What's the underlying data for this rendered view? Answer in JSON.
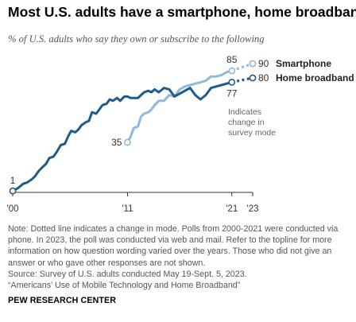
{
  "title": "Most U.S. adults have a smartphone, home broadband",
  "subtitle": "% of U.S. adults who say they own or subscribe to the following",
  "chart_data": {
    "type": "line",
    "xlim": [
      2000,
      2023
    ],
    "ylim": [
      0,
      100
    ],
    "x_ticks": [
      {
        "value": 2000,
        "label": "'00"
      },
      {
        "value": 2011,
        "label": "'11"
      },
      {
        "value": 2021,
        "label": "'21"
      },
      {
        "value": 2023,
        "label": "'23"
      }
    ],
    "grid": false,
    "legend": "direct labels at line ends",
    "series": [
      {
        "name": "Home broadband",
        "color": "#1f5c8b",
        "points": [
          [
            2000.0,
            1
          ],
          [
            2000.5,
            3
          ],
          [
            2001.0,
            6
          ],
          [
            2001.4,
            7
          ],
          [
            2001.8,
            9
          ],
          [
            2002.1,
            11
          ],
          [
            2002.5,
            15
          ],
          [
            2002.9,
            18
          ],
          [
            2003.2,
            20
          ],
          [
            2003.5,
            24
          ],
          [
            2003.9,
            25
          ],
          [
            2004.2,
            28
          ],
          [
            2004.6,
            33
          ],
          [
            2005.0,
            34
          ],
          [
            2005.3,
            39
          ],
          [
            2005.6,
            43
          ],
          [
            2006.0,
            42
          ],
          [
            2006.3,
            44
          ],
          [
            2006.6,
            47
          ],
          [
            2007.0,
            49
          ],
          [
            2007.3,
            50
          ],
          [
            2007.6,
            56
          ],
          [
            2008.0,
            55
          ],
          [
            2008.3,
            58
          ],
          [
            2008.6,
            61
          ],
          [
            2009.0,
            62
          ],
          [
            2009.3,
            65
          ],
          [
            2009.6,
            64
          ],
          [
            2010.0,
            66
          ],
          [
            2010.3,
            64
          ],
          [
            2010.7,
            67
          ],
          [
            2011.0,
            67
          ],
          [
            2011.3,
            66
          ],
          [
            2011.6,
            66
          ],
          [
            2012.0,
            66
          ],
          [
            2012.3,
            68
          ],
          [
            2012.6,
            70
          ],
          [
            2013.0,
            71
          ],
          [
            2013.3,
            70
          ],
          [
            2013.6,
            72
          ],
          [
            2014.0,
            70
          ],
          [
            2014.5,
            73
          ],
          [
            2015.0,
            72
          ],
          [
            2015.5,
            67
          ],
          [
            2016.0,
            69
          ],
          [
            2016.5,
            71
          ],
          [
            2017.0,
            73
          ],
          [
            2017.5,
            68
          ],
          [
            2018.0,
            65
          ],
          [
            2018.5,
            68
          ],
          [
            2019.0,
            73
          ],
          [
            2020.0,
            75
          ],
          [
            2021.0,
            77
          ]
        ],
        "end_2021": {
          "value": 77,
          "label": "77"
        },
        "projection": {
          "x": 2023,
          "value": 80,
          "label": "80",
          "style": "dotted"
        }
      },
      {
        "name": "Smartphone",
        "color": "#8fb8de",
        "points": [
          [
            2011.0,
            35
          ],
          [
            2011.3,
            39
          ],
          [
            2011.6,
            45
          ],
          [
            2012.0,
            46
          ],
          [
            2012.3,
            53
          ],
          [
            2012.6,
            55
          ],
          [
            2013.0,
            56
          ],
          [
            2013.3,
            58
          ],
          [
            2013.6,
            61
          ],
          [
            2014.0,
            64
          ],
          [
            2014.5,
            64
          ],
          [
            2015.0,
            68
          ],
          [
            2015.5,
            67
          ],
          [
            2016.0,
            72
          ],
          [
            2016.5,
            74
          ],
          [
            2017.0,
            75
          ],
          [
            2017.5,
            76
          ],
          [
            2018.0,
            77
          ],
          [
            2018.5,
            78
          ],
          [
            2019.0,
            81
          ],
          [
            2019.5,
            81
          ],
          [
            2020.0,
            82
          ],
          [
            2020.5,
            84
          ],
          [
            2021.0,
            85
          ]
        ],
        "start_2011": {
          "value": 35,
          "label": "35"
        },
        "end_2021": {
          "value": 85,
          "label": "85"
        },
        "projection": {
          "x": 2023,
          "value": 90,
          "label": "90",
          "style": "dotted"
        }
      }
    ],
    "annotations": {
      "start_broadband": {
        "x": 2000,
        "value": 1,
        "label": "1"
      },
      "mode_change": "Indicates change in survey mode"
    }
  },
  "notes": {
    "note": "Note: Dotted line indicates a change in mode. Polls from 2000-2021 were conducted via phone. In 2023, the poll was conducted via web and mail. Refer to the topline for more information on how question wording varied over the years. Those who did not give an answer or who gave other responses are not shown.",
    "source": "Source: Survey of U.S. adults conducted May 19-Sept. 5, 2023.",
    "report": "“Americans’ Use of Mobile Technology and Home Broadband”"
  },
  "org": "PEW RESEARCH CENTER"
}
